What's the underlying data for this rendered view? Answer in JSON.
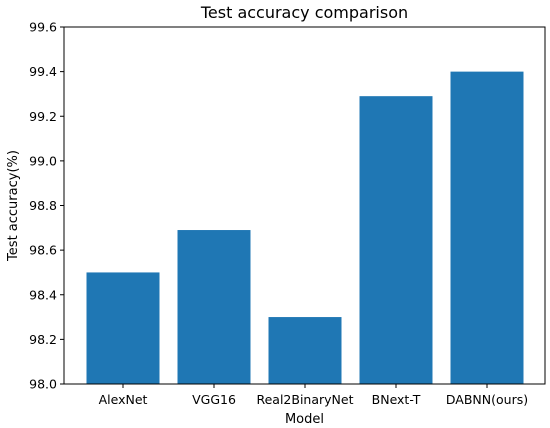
{
  "chart_data": {
    "type": "bar",
    "title": "Test accuracy comparison",
    "xlabel": "Model",
    "ylabel": "Test accuracy(%)",
    "categories": [
      "AlexNet",
      "VGG16",
      "Real2BinaryNet",
      "BNext-T",
      "DABNN(ours)"
    ],
    "values": [
      98.5,
      98.69,
      98.3,
      99.29,
      99.4
    ],
    "ylim": [
      98.0,
      99.6
    ],
    "yticks": [
      "98.0",
      "98.2",
      "98.4",
      "98.6",
      "98.8",
      "99.0",
      "99.2",
      "99.4",
      "99.6"
    ],
    "bar_color": "#1f77b4",
    "grid": false,
    "legend": "none"
  }
}
